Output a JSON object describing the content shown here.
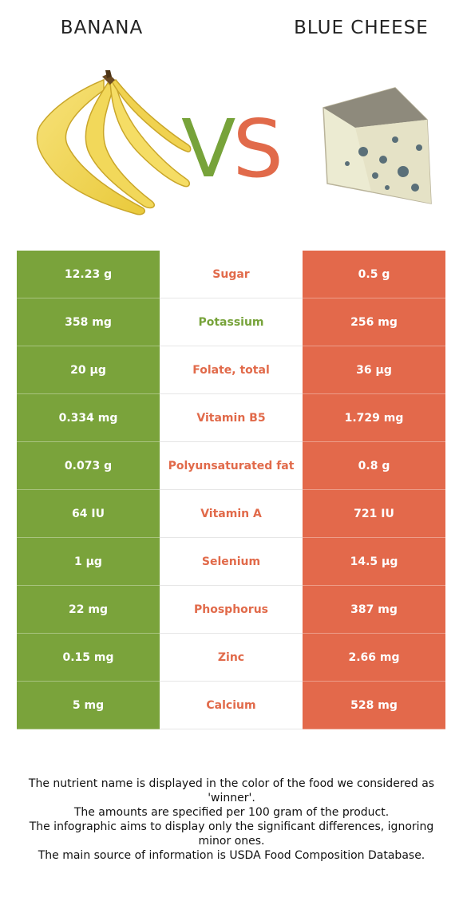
{
  "foods": {
    "left": {
      "name": "BANANA",
      "color": "#7aa33b"
    },
    "right": {
      "name": "BLUE CHEESE",
      "color": "#e3694b"
    }
  },
  "vs": {
    "v": "V",
    "s": "S"
  },
  "rows": [
    {
      "nutrient": "Sugar",
      "left": "12.23 g",
      "right": "0.5 g",
      "winner": "right"
    },
    {
      "nutrient": "Potassium",
      "left": "358 mg",
      "right": "256 mg",
      "winner": "left"
    },
    {
      "nutrient": "Folate, total",
      "left": "20 µg",
      "right": "36 µg",
      "winner": "right"
    },
    {
      "nutrient": "Vitamin B5",
      "left": "0.334 mg",
      "right": "1.729 mg",
      "winner": "right"
    },
    {
      "nutrient": "Polyunsaturated fat",
      "left": "0.073 g",
      "right": "0.8 g",
      "winner": "right"
    },
    {
      "nutrient": "Vitamin A",
      "left": "64 IU",
      "right": "721 IU",
      "winner": "right"
    },
    {
      "nutrient": "Selenium",
      "left": "1 µg",
      "right": "14.5 µg",
      "winner": "right"
    },
    {
      "nutrient": "Phosphorus",
      "left": "22 mg",
      "right": "387 mg",
      "winner": "right"
    },
    {
      "nutrient": "Zinc",
      "left": "0.15 mg",
      "right": "2.66 mg",
      "winner": "right"
    },
    {
      "nutrient": "Calcium",
      "left": "5 mg",
      "right": "528 mg",
      "winner": "right"
    }
  ],
  "footer": [
    "The nutrient name is displayed in the color of the food we considered as 'winner'.",
    "The amounts are specified per 100 gram of the product.",
    "The infographic aims to display only the significant differences, ignoring minor ones.",
    "The main source of information is USDA Food Composition Database."
  ]
}
